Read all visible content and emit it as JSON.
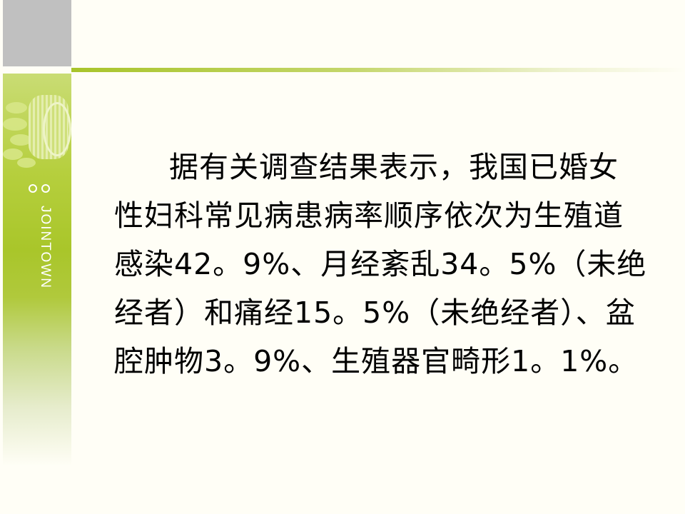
{
  "sidebar": {
    "brand": "JOINTOWN",
    "accent_color": "#a8c42a"
  },
  "content": {
    "lines": [
      "据有关调查结果表示，我国已婚女",
      "性妇科常见病患病率顺序依次为生殖道",
      "感染42。9%、月经紊乱34。5%（未绝",
      "经者）和痛经15。5%（未绝经者）、盆",
      "腔肿物3。9%、生殖器官畸形1。1%。"
    ]
  }
}
